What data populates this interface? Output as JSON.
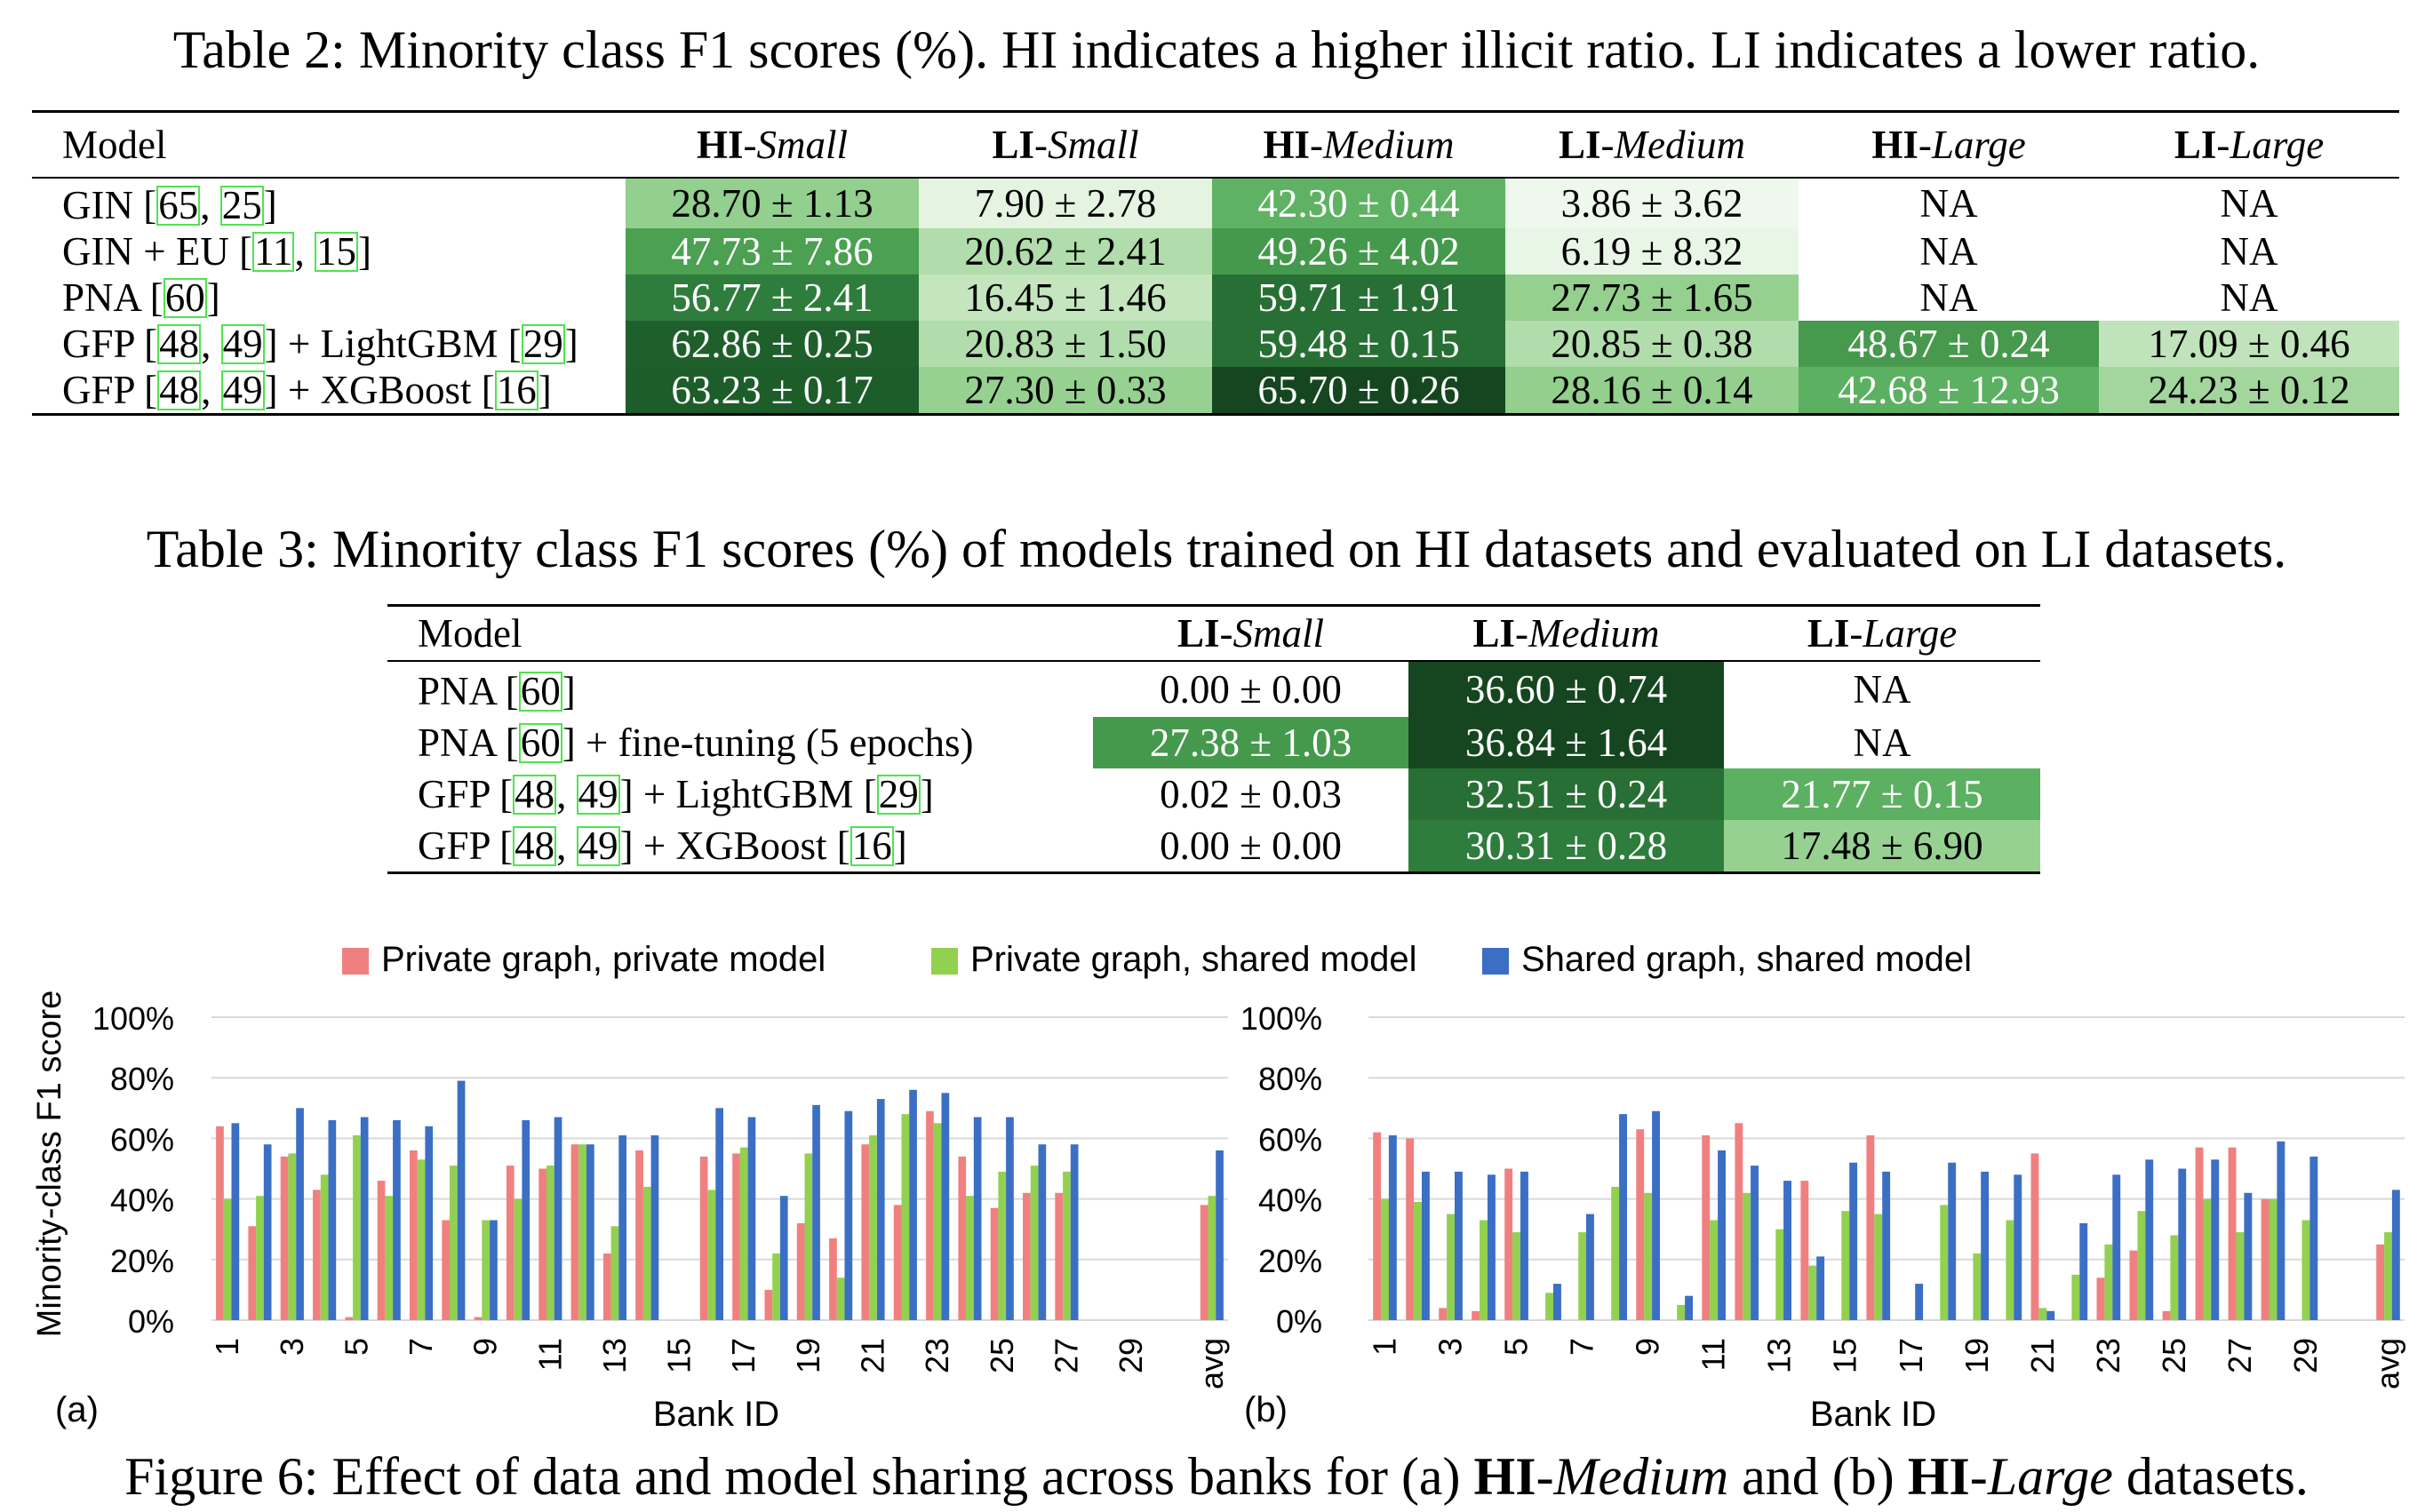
{
  "table2": {
    "caption": "Table 2: Minority class F1 scores (%). HI indicates a higher illicit ratio. LI indicates a lower ratio.",
    "model_header": "Model",
    "columns": [
      {
        "bold": "HI",
        "italic": "-Small"
      },
      {
        "bold": "LI",
        "italic": "-Small"
      },
      {
        "bold": "HI",
        "italic": "-Medium"
      },
      {
        "bold": "LI",
        "italic": "-Medium"
      },
      {
        "bold": "HI",
        "italic": "-Large"
      },
      {
        "bold": "LI",
        "italic": "-Large"
      }
    ],
    "rows": [
      {
        "model": [
          {
            "t": "GIN ["
          },
          {
            "c": "65"
          },
          {
            "t": ", "
          },
          {
            "c": "25"
          },
          {
            "t": "]"
          }
        ],
        "cells": [
          {
            "v": "28.70 ± 1.13",
            "bg": "#93cf8f",
            "fg": "#000000"
          },
          {
            "v": "7.90 ± 2.78",
            "bg": "#e4f4e1",
            "fg": "#000000"
          },
          {
            "v": "42.30 ± 0.44",
            "bg": "#5fb263",
            "fg": "#ffffff"
          },
          {
            "v": "3.86 ± 3.62",
            "bg": "#eef8ec",
            "fg": "#000000"
          },
          {
            "v": "NA",
            "bg": "#ffffff",
            "fg": "#000000"
          },
          {
            "v": "NA",
            "bg": "#ffffff",
            "fg": "#000000"
          }
        ]
      },
      {
        "model": [
          {
            "t": "GIN + EU ["
          },
          {
            "c": "11"
          },
          {
            "t": ", "
          },
          {
            "c": "15"
          },
          {
            "t": "]"
          }
        ],
        "cells": [
          {
            "v": "47.73 ± 7.86",
            "bg": "#4ba052",
            "fg": "#ffffff"
          },
          {
            "v": "20.62 ± 2.41",
            "bg": "#b1dcab",
            "fg": "#000000"
          },
          {
            "v": "49.26 ± 4.02",
            "bg": "#45994c",
            "fg": "#ffffff"
          },
          {
            "v": "6.19 ± 8.32",
            "bg": "#e8f6e5",
            "fg": "#000000"
          },
          {
            "v": "NA",
            "bg": "#ffffff",
            "fg": "#000000"
          },
          {
            "v": "NA",
            "bg": "#ffffff",
            "fg": "#000000"
          }
        ]
      },
      {
        "model": [
          {
            "t": "PNA ["
          },
          {
            "c": "60"
          },
          {
            "t": "]"
          }
        ],
        "cells": [
          {
            "v": "56.77 ± 2.41",
            "bg": "#2f7d3c",
            "fg": "#ffffff"
          },
          {
            "v": "16.45 ± 1.46",
            "bg": "#c4e5be",
            "fg": "#000000"
          },
          {
            "v": "59.71 ± 1.91",
            "bg": "#286f35",
            "fg": "#ffffff"
          },
          {
            "v": "27.73 ± 1.65",
            "bg": "#95d08f",
            "fg": "#000000"
          },
          {
            "v": "NA",
            "bg": "#ffffff",
            "fg": "#000000"
          },
          {
            "v": "NA",
            "bg": "#ffffff",
            "fg": "#000000"
          }
        ]
      },
      {
        "model": [
          {
            "t": "GFP ["
          },
          {
            "c": "48"
          },
          {
            "t": ", "
          },
          {
            "c": "49"
          },
          {
            "t": "] + LightGBM ["
          },
          {
            "c": "29"
          },
          {
            "t": "]"
          }
        ],
        "cells": [
          {
            "v": "62.86 ± 0.25",
            "bg": "#1e5f2b",
            "fg": "#ffffff"
          },
          {
            "v": "20.83 ± 1.50",
            "bg": "#b1dcab",
            "fg": "#000000"
          },
          {
            "v": "59.48 ± 0.15",
            "bg": "#286f35",
            "fg": "#ffffff"
          },
          {
            "v": "20.85 ± 0.38",
            "bg": "#b1dcab",
            "fg": "#000000"
          },
          {
            "v": "48.67 ± 0.24",
            "bg": "#46994d",
            "fg": "#ffffff"
          },
          {
            "v": "17.09 ± 0.46",
            "bg": "#c1e3bb",
            "fg": "#000000"
          }
        ]
      },
      {
        "model": [
          {
            "t": "GFP ["
          },
          {
            "c": "48"
          },
          {
            "t": ", "
          },
          {
            "c": "49"
          },
          {
            "t": "] + XGBoost ["
          },
          {
            "c": "16"
          },
          {
            "t": "]"
          }
        ],
        "cells": [
          {
            "v": "63.23 ± 0.17",
            "bg": "#1d5d2a",
            "fg": "#ffffff"
          },
          {
            "v": "27.30 ± 0.33",
            "bg": "#97d191",
            "fg": "#000000"
          },
          {
            "v": "65.70 ± 0.26",
            "bg": "#15461f",
            "fg": "#ffffff"
          },
          {
            "v": "28.16 ± 0.14",
            "bg": "#93cf8d",
            "fg": "#000000"
          },
          {
            "v": "42.68 ± 12.93",
            "bg": "#5cb061",
            "fg": "#ffffff"
          },
          {
            "v": "24.23 ± 0.12",
            "bg": "#a3d69d",
            "fg": "#000000"
          }
        ]
      }
    ]
  },
  "table3": {
    "caption": "Table 3: Minority class F1 scores (%) of models trained on HI datasets and evaluated on LI datasets.",
    "model_header": "Model",
    "columns": [
      {
        "bold": "LI",
        "italic": "-Small"
      },
      {
        "bold": "LI",
        "italic": "-Medium"
      },
      {
        "bold": "LI",
        "italic": "-Large"
      }
    ],
    "rows": [
      {
        "model": [
          {
            "t": "PNA ["
          },
          {
            "c": "60"
          },
          {
            "t": "]"
          }
        ],
        "cells": [
          {
            "v": "0.00 ± 0.00",
            "bg": "#ffffff",
            "fg": "#000000"
          },
          {
            "v": "36.60 ± 0.74",
            "bg": "#15461f",
            "fg": "#ffffff"
          },
          {
            "v": "NA",
            "bg": "#ffffff",
            "fg": "#000000"
          }
        ]
      },
      {
        "model": [
          {
            "t": "PNA ["
          },
          {
            "c": "60"
          },
          {
            "t": "] + fine-tuning (5 epochs)"
          }
        ],
        "cells": [
          {
            "v": "27.38 ± 1.03",
            "bg": "#45994c",
            "fg": "#ffffff"
          },
          {
            "v": "36.84 ± 1.64",
            "bg": "#15461f",
            "fg": "#ffffff"
          },
          {
            "v": "NA",
            "bg": "#ffffff",
            "fg": "#000000"
          }
        ]
      },
      {
        "model": [
          {
            "t": "GFP ["
          },
          {
            "c": "48"
          },
          {
            "t": ", "
          },
          {
            "c": "49"
          },
          {
            "t": "] + LightGBM ["
          },
          {
            "c": "29"
          },
          {
            "t": "]"
          }
        ],
        "cells": [
          {
            "v": "0.02 ± 0.03",
            "bg": "#ffffff",
            "fg": "#000000"
          },
          {
            "v": "32.51 ± 0.24",
            "bg": "#286f35",
            "fg": "#ffffff"
          },
          {
            "v": "21.77 ± 0.15",
            "bg": "#5cb061",
            "fg": "#ffffff"
          }
        ]
      },
      {
        "model": [
          {
            "t": "GFP ["
          },
          {
            "c": "48"
          },
          {
            "t": ", "
          },
          {
            "c": "49"
          },
          {
            "t": "] + XGBoost ["
          },
          {
            "c": "16"
          },
          {
            "t": "]"
          }
        ],
        "cells": [
          {
            "v": "0.00 ± 0.00",
            "bg": "#ffffff",
            "fg": "#000000"
          },
          {
            "v": "30.31 ± 0.28",
            "bg": "#2f7d3c",
            "fg": "#ffffff"
          },
          {
            "v": "17.48 ± 6.90",
            "bg": "#97d191",
            "fg": "#000000"
          }
        ]
      }
    ]
  },
  "figure": {
    "caption_parts": [
      {
        "t": "Figure 6: Effect of data and model sharing across banks for (a) "
      },
      {
        "b": "HI"
      },
      {
        "i": "-Medium"
      },
      {
        "t": " and (b) "
      },
      {
        "b": "HI"
      },
      {
        "i": "-Large"
      },
      {
        "t": " datasets."
      }
    ]
  },
  "chart_data": [
    {
      "type": "bar",
      "panel": "(a)",
      "xlabel": "Bank ID",
      "ylabel": "Minority-class F1 score",
      "ylim": [
        0,
        100
      ],
      "yticks": [
        "0%",
        "20%",
        "40%",
        "60%",
        "80%",
        "100%"
      ],
      "grid": true,
      "legend_position": "top",
      "categories": [
        "1",
        "2",
        "3",
        "4",
        "5",
        "6",
        "7",
        "8",
        "9",
        "10",
        "11",
        "12",
        "13",
        "14",
        "15",
        "16",
        "17",
        "18",
        "19",
        "20",
        "21",
        "22",
        "23",
        "24",
        "25",
        "26",
        "27",
        "28",
        "29",
        "30",
        "avg"
      ],
      "xtick_labels": [
        "1",
        "3",
        "5",
        "7",
        "9",
        "11",
        "13",
        "15",
        "17",
        "19",
        "21",
        "23",
        "25",
        "27",
        "29",
        "avg"
      ],
      "series": [
        {
          "name": "Private graph, private model",
          "color": "#f08080",
          "values": [
            64,
            31,
            54,
            43,
            1,
            46,
            56,
            33,
            1,
            51,
            50,
            58,
            22,
            56,
            0,
            54,
            55,
            10,
            32,
            27,
            58,
            38,
            69,
            54,
            37,
            42,
            42,
            0,
            0,
            0,
            38
          ]
        },
        {
          "name": "Private graph, shared model",
          "color": "#92d050",
          "values": [
            40,
            41,
            55,
            48,
            61,
            41,
            53,
            51,
            33,
            40,
            51,
            58,
            31,
            44,
            0,
            43,
            57,
            22,
            55,
            14,
            61,
            68,
            65,
            41,
            49,
            51,
            49,
            0,
            0,
            0,
            41
          ]
        },
        {
          "name": "Shared graph, shared model",
          "color": "#3a6fc4",
          "values": [
            65,
            58,
            70,
            66,
            67,
            66,
            64,
            79,
            33,
            66,
            67,
            58,
            61,
            61,
            0,
            70,
            67,
            41,
            71,
            69,
            73,
            76,
            75,
            67,
            67,
            58,
            58,
            0,
            0,
            0,
            56
          ]
        }
      ]
    },
    {
      "type": "bar",
      "panel": "(b)",
      "xlabel": "Bank ID",
      "ylabel": "",
      "ylim": [
        0,
        100
      ],
      "yticks": [
        "0%",
        "20%",
        "40%",
        "60%",
        "80%",
        "100%"
      ],
      "grid": true,
      "categories": [
        "1",
        "2",
        "3",
        "4",
        "5",
        "6",
        "7",
        "8",
        "9",
        "10",
        "11",
        "12",
        "13",
        "14",
        "15",
        "16",
        "17",
        "18",
        "19",
        "20",
        "21",
        "22",
        "23",
        "24",
        "25",
        "26",
        "27",
        "28",
        "29",
        "30",
        "avg"
      ],
      "xtick_labels": [
        "1",
        "3",
        "5",
        "7",
        "9",
        "11",
        "13",
        "15",
        "17",
        "19",
        "21",
        "23",
        "25",
        "27",
        "29",
        "avg"
      ],
      "series": [
        {
          "name": "Private graph, private model",
          "color": "#f08080",
          "values": [
            62,
            60,
            4,
            3,
            50,
            0,
            0,
            0,
            63,
            0,
            61,
            65,
            0,
            46,
            0,
            61,
            0,
            0,
            0,
            0,
            55,
            0,
            14,
            23,
            3,
            57,
            57,
            40,
            0,
            0,
            25
          ]
        },
        {
          "name": "Private graph, shared model",
          "color": "#92d050",
          "values": [
            40,
            39,
            35,
            33,
            29,
            9,
            29,
            44,
            42,
            5,
            33,
            42,
            30,
            18,
            36,
            35,
            0,
            38,
            22,
            33,
            4,
            15,
            25,
            36,
            28,
            40,
            29,
            40,
            33,
            0,
            29
          ]
        },
        {
          "name": "Shared graph, shared model",
          "color": "#3a6fc4",
          "values": [
            61,
            49,
            49,
            48,
            49,
            12,
            35,
            68,
            69,
            8,
            56,
            51,
            46,
            21,
            52,
            49,
            12,
            52,
            49,
            48,
            3,
            32,
            48,
            53,
            50,
            53,
            42,
            59,
            54,
            0,
            43
          ]
        }
      ]
    }
  ]
}
